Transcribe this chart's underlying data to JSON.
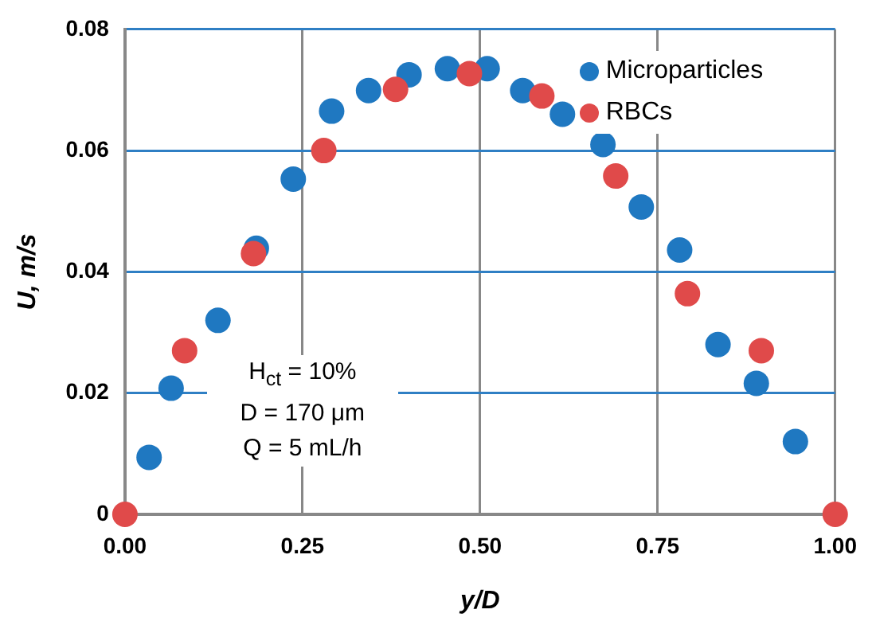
{
  "chart_data": {
    "type": "scatter",
    "xlabel": "y/D",
    "ylabel": "U, m/s",
    "xlim": [
      0,
      1
    ],
    "xticks": [
      {
        "value": 0,
        "label": "0.00"
      },
      {
        "value": 0.25,
        "label": "0.25"
      },
      {
        "value": 0.5,
        "label": "0.50"
      },
      {
        "value": 0.75,
        "label": "0.75"
      },
      {
        "value": 1,
        "label": "1.00"
      }
    ],
    "ylim": [
      0,
      0.08
    ],
    "yticks": [
      0,
      {
        "value": 0.02,
        "label": "0.02"
      },
      {
        "value": 0.04,
        "label": "0.04"
      },
      {
        "value": 0.06,
        "label": "0.06"
      },
      {
        "value": 0.08,
        "label": "0.08"
      }
    ],
    "grid": true,
    "legend": "top right",
    "marker": "circle",
    "annotations": [
      "H$_{ct}$ = 10%",
      "D = 170 μm",
      "Q = 5 mL/h"
    ],
    "series": [
      {
        "name": "Microparticles",
        "color": "#1f78c1",
        "x": [
          0.034,
          0.065,
          0.131,
          0.185,
          0.237,
          0.291,
          0.343,
          0.4,
          0.454,
          0.51,
          0.56,
          0.616,
          0.673,
          0.727,
          0.781,
          0.835,
          0.889,
          0.944
        ],
        "values": [
          0.0094,
          0.0208,
          0.032,
          0.0439,
          0.0553,
          0.0665,
          0.0699,
          0.0725,
          0.0735,
          0.0735,
          0.0699,
          0.066,
          0.061,
          0.0507,
          0.0436,
          0.028,
          0.0216,
          0.012
        ]
      },
      {
        "name": "RBCs",
        "color": "#e04a4a",
        "x": [
          0,
          0.084,
          0.181,
          0.28,
          0.381,
          0.485,
          0.587,
          0.691,
          0.792,
          0.896,
          1
        ],
        "values": [
          0,
          0.027,
          0.043,
          0.06,
          0.0701,
          0.0727,
          0.069,
          0.0558,
          0.0364,
          0.027,
          0
        ]
      }
    ]
  }
}
